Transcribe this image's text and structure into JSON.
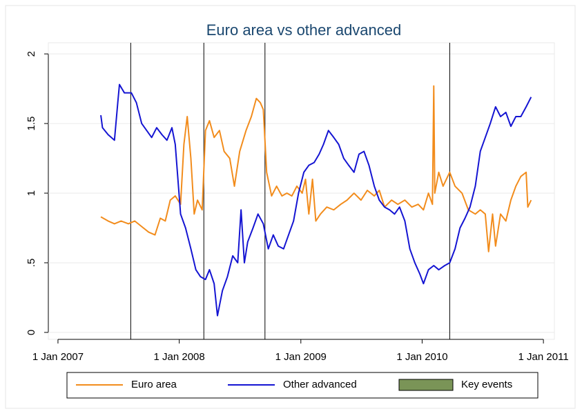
{
  "chart_data": {
    "type": "line",
    "title": "Euro area vs other advanced",
    "xlim": [
      "2006-12-03",
      "2011-02-03"
    ],
    "xticks": [
      {
        "value": "2007-01-01",
        "label": "1 Jan 2007"
      },
      {
        "value": "2008-01-01",
        "label": "1 Jan 2008"
      },
      {
        "value": "2009-01-01",
        "label": "1 Jan 2009"
      },
      {
        "value": "2010-01-01",
        "label": "1 Jan 2010"
      },
      {
        "value": "2011-01-01",
        "label": "1 Jan 2011"
      }
    ],
    "ylim": [
      -0.05,
      2.08
    ],
    "yticks": [
      0,
      {
        "value": 0.5,
        "label": ".5"
      },
      1,
      1.5,
      2
    ],
    "grid": true,
    "series": [
      {
        "name": "Euro area",
        "color": "#f28c1c",
        "x": [
          "2007-05-10",
          "2007-06-01",
          "2007-06-20",
          "2007-07-10",
          "2007-08-01",
          "2007-08-20",
          "2007-09-10",
          "2007-10-01",
          "2007-10-20",
          "2007-11-05",
          "2007-11-20",
          "2007-12-05",
          "2007-12-20",
          "2008-01-05",
          "2008-01-15",
          "2008-01-25",
          "2008-02-05",
          "2008-02-15",
          "2008-02-25",
          "2008-03-10",
          "2008-03-20",
          "2008-04-01",
          "2008-04-15",
          "2008-05-01",
          "2008-05-15",
          "2008-06-01",
          "2008-06-15",
          "2008-07-01",
          "2008-07-20",
          "2008-08-05",
          "2008-08-20",
          "2008-09-01",
          "2008-09-10",
          "2008-09-20",
          "2008-10-05",
          "2008-10-20",
          "2008-11-05",
          "2008-11-20",
          "2008-12-05",
          "2008-12-20",
          "2009-01-05",
          "2009-01-15",
          "2009-01-25",
          "2009-02-05",
          "2009-02-15",
          "2009-03-01",
          "2009-03-20",
          "2009-04-10",
          "2009-05-01",
          "2009-05-20",
          "2009-06-10",
          "2009-07-01",
          "2009-07-20",
          "2009-08-10",
          "2009-08-25",
          "2009-09-10",
          "2009-10-01",
          "2009-10-20",
          "2009-11-10",
          "2009-12-01",
          "2009-12-20",
          "2010-01-05",
          "2010-01-20",
          "2010-02-01",
          "2010-02-05",
          "2010-02-08",
          "2010-02-20",
          "2010-03-05",
          "2010-03-25",
          "2010-04-10",
          "2010-05-01",
          "2010-05-20",
          "2010-06-10",
          "2010-06-25",
          "2010-07-10",
          "2010-07-20",
          "2010-08-01",
          "2010-08-10",
          "2010-08-25",
          "2010-09-10",
          "2010-09-25",
          "2010-10-10",
          "2010-10-25",
          "2010-11-10",
          "2010-11-15",
          "2010-11-25"
        ],
        "values": [
          0.83,
          0.8,
          0.78,
          0.8,
          0.78,
          0.8,
          0.76,
          0.72,
          0.7,
          0.82,
          0.8,
          0.95,
          0.98,
          0.92,
          1.35,
          1.55,
          1.25,
          0.85,
          0.95,
          0.88,
          1.45,
          1.52,
          1.4,
          1.45,
          1.3,
          1.25,
          1.05,
          1.3,
          1.45,
          1.55,
          1.68,
          1.65,
          1.6,
          1.15,
          0.98,
          1.05,
          0.98,
          1.0,
          0.98,
          1.05,
          1.0,
          1.1,
          0.85,
          1.1,
          0.8,
          0.85,
          0.9,
          0.88,
          0.92,
          0.95,
          1.0,
          0.95,
          1.02,
          0.98,
          1.02,
          0.9,
          0.95,
          0.92,
          0.95,
          0.9,
          0.92,
          0.88,
          1.0,
          0.92,
          1.77,
          1.0,
          1.15,
          1.05,
          1.15,
          1.05,
          1.0,
          0.88,
          0.85,
          0.88,
          0.85,
          0.58,
          0.85,
          0.62,
          0.85,
          0.8,
          0.95,
          1.05,
          1.12,
          1.15,
          0.9,
          0.95
        ]
      },
      {
        "name": "Other advanced",
        "color": "#1414d2",
        "x": [
          "2007-05-10",
          "2007-05-15",
          "2007-06-01",
          "2007-06-20",
          "2007-06-30",
          "2007-07-05",
          "2007-07-20",
          "2007-08-10",
          "2007-08-25",
          "2007-09-10",
          "2007-09-25",
          "2007-10-10",
          "2007-10-25",
          "2007-11-10",
          "2007-11-25",
          "2007-12-10",
          "2007-12-20",
          "2008-01-05",
          "2008-01-20",
          "2008-02-05",
          "2008-02-20",
          "2008-03-05",
          "2008-03-20",
          "2008-04-01",
          "2008-04-15",
          "2008-04-25",
          "2008-05-10",
          "2008-05-25",
          "2008-06-10",
          "2008-06-25",
          "2008-07-05",
          "2008-07-15",
          "2008-07-25",
          "2008-08-10",
          "2008-08-25",
          "2008-09-10",
          "2008-09-25",
          "2008-10-10",
          "2008-10-25",
          "2008-11-10",
          "2008-11-25",
          "2008-12-10",
          "2008-12-25",
          "2009-01-10",
          "2009-01-25",
          "2009-02-10",
          "2009-02-25",
          "2009-03-10",
          "2009-03-25",
          "2009-04-10",
          "2009-04-25",
          "2009-05-10",
          "2009-05-25",
          "2009-06-10",
          "2009-06-25",
          "2009-07-10",
          "2009-07-25",
          "2009-08-10",
          "2009-08-25",
          "2009-09-10",
          "2009-09-25",
          "2009-10-10",
          "2009-10-25",
          "2009-11-10",
          "2009-11-25",
          "2009-12-10",
          "2009-12-25",
          "2010-01-05",
          "2010-01-20",
          "2010-02-05",
          "2010-02-20",
          "2010-03-10",
          "2010-03-25",
          "2010-04-10",
          "2010-04-25",
          "2010-05-10",
          "2010-05-25",
          "2010-06-10",
          "2010-06-25",
          "2010-07-10",
          "2010-07-25",
          "2010-08-10",
          "2010-08-25",
          "2010-09-10",
          "2010-09-25",
          "2010-10-10",
          "2010-10-25",
          "2010-11-10",
          "2010-11-25"
        ],
        "values": [
          1.56,
          1.47,
          1.42,
          1.38,
          1.65,
          1.78,
          1.72,
          1.72,
          1.65,
          1.5,
          1.45,
          1.4,
          1.47,
          1.42,
          1.38,
          1.47,
          1.35,
          0.85,
          0.75,
          0.6,
          0.45,
          0.4,
          0.38,
          0.45,
          0.35,
          0.12,
          0.3,
          0.4,
          0.55,
          0.5,
          0.88,
          0.5,
          0.65,
          0.75,
          0.85,
          0.78,
          0.6,
          0.7,
          0.62,
          0.6,
          0.7,
          0.8,
          1.0,
          1.15,
          1.2,
          1.22,
          1.28,
          1.35,
          1.45,
          1.4,
          1.35,
          1.25,
          1.2,
          1.15,
          1.28,
          1.3,
          1.2,
          1.05,
          0.95,
          0.9,
          0.88,
          0.85,
          0.9,
          0.8,
          0.6,
          0.5,
          0.42,
          0.35,
          0.45,
          0.48,
          0.45,
          0.48,
          0.5,
          0.6,
          0.75,
          0.82,
          0.9,
          1.05,
          1.3,
          1.4,
          1.5,
          1.62,
          1.55,
          1.58,
          1.48,
          1.55,
          1.55,
          1.62,
          1.69
        ]
      }
    ],
    "events": {
      "name": "Key events",
      "color": "#7a9457",
      "line_color": "#000000",
      "dates": [
        "2007-08-08",
        "2008-03-15",
        "2008-09-15",
        "2010-03-25"
      ]
    }
  }
}
